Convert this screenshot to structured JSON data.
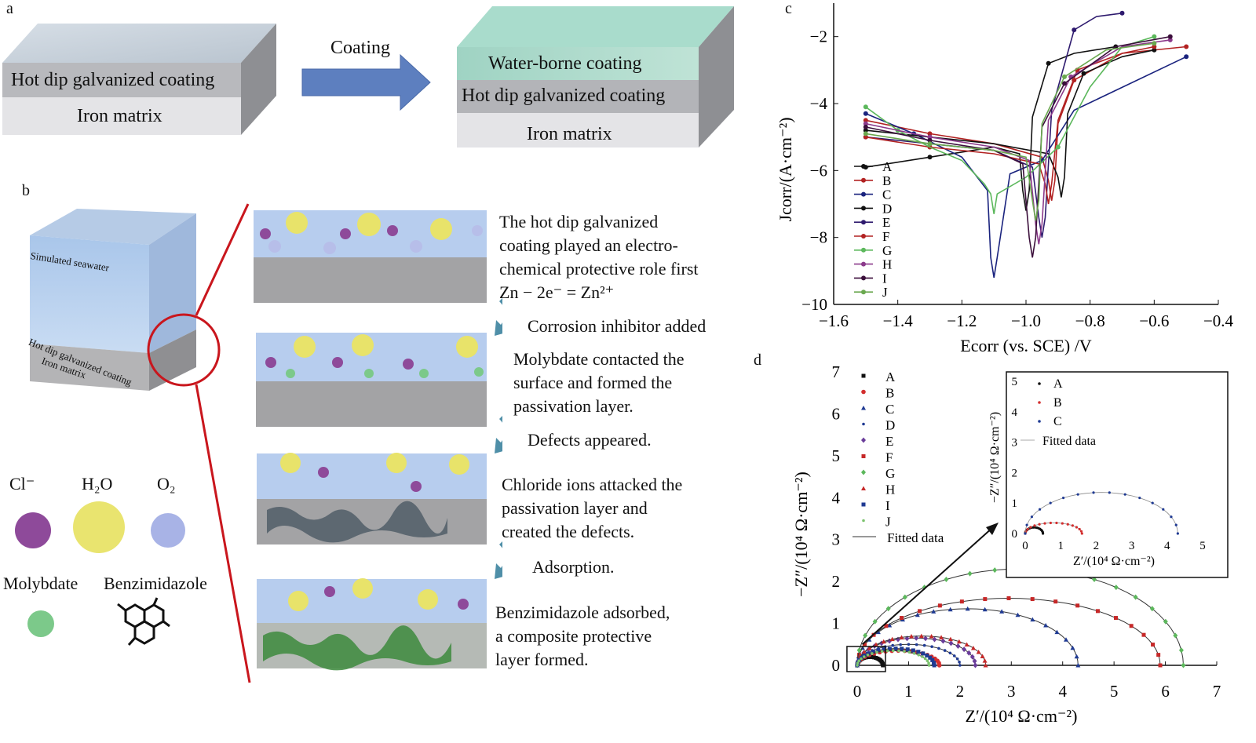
{
  "panels": {
    "a": "a",
    "b": "b",
    "c": "c",
    "d": "d"
  },
  "panel_a": {
    "left_top": "Hot dip galvanized coating",
    "left_bottom": "Iron matrix",
    "arrow_label": "Coating",
    "right_top": "Water-borne coating",
    "right_mid": "Hot dip galvanized coating",
    "right_bottom": "Iron matrix"
  },
  "panel_b": {
    "cube_top": "Simulated seawater",
    "cube_mid": "Hot dip galvanized coating",
    "cube_bottom": "Iron matrix",
    "legend": {
      "cl": "Cl⁻",
      "h2o": "H₂O",
      "o2": "O₂",
      "molybdate": "Molybdate",
      "benzimidazole": "Benzimidazole"
    },
    "steps": [
      "The hot dip galvanized\n coating played an electro-\n chemical protective role first\n Zn − 2e⁻ = Zn²⁺",
      "Molybdate contacted the\nsurface and formed the\npassivation layer.",
      "Chloride ions attacked the\npassivation layer and\ncreated the defects.",
      "Benzimidazole adsorbed,\na composite protective\nlayer formed."
    ],
    "transitions": [
      "Corrosion inhibitor added",
      "Defects appeared.",
      "Adsorption."
    ]
  },
  "chart_data": [
    {
      "type": "line",
      "panel": "c",
      "xlabel": "Ecorr (vs. SCE) /V",
      "ylabel": "Jcorr/(A·cm⁻²)",
      "xlim": [
        -1.6,
        -0.4
      ],
      "ylim": [
        -10,
        -1
      ],
      "xticks": [
        "−1.6",
        "−1.4",
        "−1.2",
        "−1.0",
        "−0.8",
        "−0.6",
        "−0.4"
      ],
      "yticks": [
        "−10",
        "−8",
        "−6",
        "−4",
        "−2"
      ],
      "legend_position": "bottom-left",
      "series": [
        {
          "name": "A",
          "color": "#111111",
          "ecorr": -1.0,
          "jmin": -7.2,
          "cathodic": [
            [
              -1.5,
              -5.9
            ],
            [
              -1.3,
              -5.6
            ],
            [
              -1.1,
              -5.3
            ],
            [
              -1.02,
              -5.5
            ]
          ],
          "anodic": [
            [
              -0.98,
              -4.4
            ],
            [
              -0.93,
              -2.8
            ],
            [
              -0.85,
              -2.5
            ],
            [
              -0.72,
              -2.3
            ]
          ]
        },
        {
          "name": "B",
          "color": "#b22222",
          "ecorr": -0.92,
          "jmin": -6.9,
          "cathodic": [
            [
              -1.5,
              -4.5
            ],
            [
              -1.3,
              -4.9
            ],
            [
              -1.1,
              -5.2
            ],
            [
              -0.95,
              -5.6
            ]
          ],
          "anodic": [
            [
              -0.9,
              -4.6
            ],
            [
              -0.85,
              -3.3
            ],
            [
              -0.7,
              -2.5
            ],
            [
              -0.5,
              -2.3
            ]
          ]
        },
        {
          "name": "C",
          "color": "#1a237e",
          "ecorr": -1.1,
          "jmin": -9.2,
          "cathodic": [
            [
              -1.5,
              -4.3
            ],
            [
              -1.35,
              -4.9
            ],
            [
              -1.2,
              -5.6
            ],
            [
              -1.12,
              -6.6
            ]
          ],
          "anodic": [
            [
              -1.05,
              -6.1
            ],
            [
              -0.95,
              -5.7
            ],
            [
              -0.85,
              -4.2
            ],
            [
              -0.5,
              -2.6
            ]
          ]
        },
        {
          "name": "D",
          "color": "#111111",
          "ecorr": -0.89,
          "jmin": -6.8,
          "cathodic": [
            [
              -1.5,
              -4.8
            ],
            [
              -1.3,
              -5.0
            ],
            [
              -1.1,
              -5.2
            ],
            [
              -0.93,
              -5.5
            ]
          ],
          "anodic": [
            [
              -0.87,
              -4.3
            ],
            [
              -0.82,
              -3.1
            ],
            [
              -0.7,
              -2.6
            ],
            [
              -0.6,
              -2.4
            ]
          ]
        },
        {
          "name": "E",
          "color": "#2e1a6e",
          "ecorr": -0.95,
          "jmin": -8.0,
          "cathodic": [
            [
              -1.5,
              -5.0
            ],
            [
              -1.3,
              -5.2
            ],
            [
              -1.1,
              -5.4
            ],
            [
              -0.98,
              -5.9
            ]
          ],
          "anodic": [
            [
              -0.92,
              -4.2
            ],
            [
              -0.85,
              -1.8
            ],
            [
              -0.78,
              -1.4
            ],
            [
              -0.7,
              -1.3
            ]
          ]
        },
        {
          "name": "F",
          "color": "#b22222",
          "ecorr": -0.93,
          "jmin": -7.0,
          "cathodic": [
            [
              -1.5,
              -5.0
            ],
            [
              -1.3,
              -5.3
            ],
            [
              -1.1,
              -5.5
            ],
            [
              -0.96,
              -5.8
            ]
          ],
          "anodic": [
            [
              -0.9,
              -4.5
            ],
            [
              -0.84,
              -3.0
            ],
            [
              -0.7,
              -2.5
            ],
            [
              -0.6,
              -2.3
            ]
          ]
        },
        {
          "name": "G",
          "color": "#5cb85c",
          "ecorr": -1.1,
          "jmin": -7.3,
          "cathodic": [
            [
              -1.5,
              -4.1
            ],
            [
              -1.4,
              -4.8
            ],
            [
              -1.3,
              -5.3
            ],
            [
              -1.2,
              -5.7
            ],
            [
              -1.13,
              -6.4
            ]
          ],
          "anodic": [
            [
              -1.0,
              -6.2
            ],
            [
              -0.9,
              -5.3
            ],
            [
              -0.8,
              -3.5
            ],
            [
              -0.7,
              -2.3
            ],
            [
              -0.6,
              -2.0
            ]
          ]
        },
        {
          "name": "H",
          "color": "#8b3a8b",
          "ecorr": -0.96,
          "jmin": -8.2,
          "cathodic": [
            [
              -1.5,
              -4.6
            ],
            [
              -1.3,
              -5.0
            ],
            [
              -1.1,
              -5.3
            ],
            [
              -0.99,
              -5.7
            ]
          ],
          "anodic": [
            [
              -0.93,
              -4.5
            ],
            [
              -0.86,
              -3.2
            ],
            [
              -0.7,
              -2.3
            ],
            [
              -0.55,
              -2.1
            ]
          ]
        },
        {
          "name": "I",
          "color": "#3b0f3b",
          "ecorr": -0.98,
          "jmin": -8.6,
          "cathodic": [
            [
              -1.5,
              -4.7
            ],
            [
              -1.3,
              -5.1
            ],
            [
              -1.1,
              -5.4
            ],
            [
              -1.01,
              -5.8
            ]
          ],
          "anodic": [
            [
              -0.95,
              -4.7
            ],
            [
              -0.88,
              -3.4
            ],
            [
              -0.72,
              -2.3
            ],
            [
              -0.55,
              -2.0
            ]
          ]
        },
        {
          "name": "J",
          "color": "#6aa84f",
          "ecorr": -0.97,
          "jmin": -7.5,
          "cathodic": [
            [
              -1.5,
              -4.9
            ],
            [
              -1.3,
              -5.2
            ],
            [
              -1.1,
              -5.4
            ],
            [
              -1.0,
              -5.6
            ]
          ],
          "anodic": [
            [
              -0.95,
              -4.6
            ],
            [
              -0.88,
              -3.2
            ],
            [
              -0.75,
              -2.4
            ],
            [
              -0.6,
              -2.2
            ]
          ]
        }
      ]
    },
    {
      "type": "scatter",
      "panel": "d",
      "xlabel": "Z′/(10⁴ Ω·cm⁻²)",
      "ylabel": "−Z″/(10⁴ Ω·cm⁻²)",
      "xlim": [
        0,
        7
      ],
      "ylim": [
        0,
        7
      ],
      "xticks": [
        "0",
        "1",
        "2",
        "3",
        "4",
        "5",
        "6",
        "7"
      ],
      "yticks": [
        "0",
        "1",
        "2",
        "3",
        "4",
        "5",
        "6",
        "7"
      ],
      "legend_position": "top-left",
      "fit_label": "Fitted data",
      "series": [
        {
          "name": "A",
          "color": "#111111",
          "marker": "square",
          "z_end": 0.5,
          "z_peak": 0.2
        },
        {
          "name": "B",
          "color": "#d32f2f",
          "marker": "circle",
          "z_end": 1.6,
          "z_peak": 0.35
        },
        {
          "name": "C",
          "color": "#1f3a93",
          "marker": "triangle",
          "z_end": 4.3,
          "z_peak": 1.35
        },
        {
          "name": "D",
          "color": "#1f3a93",
          "marker": "dot",
          "z_end": 2.0,
          "z_peak": 0.5
        },
        {
          "name": "E",
          "color": "#6a3d9a",
          "marker": "diamond",
          "z_end": 2.3,
          "z_peak": 0.65
        },
        {
          "name": "F",
          "color": "#c62828",
          "marker": "square",
          "z_end": 5.9,
          "z_peak": 1.6
        },
        {
          "name": "G",
          "color": "#5cb85c",
          "marker": "diamond",
          "z_end": 6.35,
          "z_peak": 2.3
        },
        {
          "name": "H",
          "color": "#c62828",
          "marker": "triangle",
          "z_end": 2.5,
          "z_peak": 0.7
        },
        {
          "name": "I",
          "color": "#1f3a93",
          "marker": "square",
          "z_end": 1.5,
          "z_peak": 0.4
        },
        {
          "name": "J",
          "color": "#7cc36e",
          "marker": "dot",
          "z_end": 1.4,
          "z_peak": 0.35
        }
      ]
    },
    {
      "type": "scatter",
      "panel": "d-inset",
      "xlabel": "Z′/(10⁴ Ω·cm⁻²)",
      "ylabel": "−Z″/(10⁴ Ω·cm⁻²)",
      "xlim": [
        0,
        5
      ],
      "ylim": [
        0,
        5
      ],
      "xticks": [
        "0",
        "1",
        "2",
        "3",
        "4",
        "5"
      ],
      "yticks": [
        "0",
        "1",
        "2",
        "3",
        "4",
        "5"
      ],
      "fit_label": "Fitted data",
      "series": [
        {
          "name": "A",
          "color": "#111111",
          "z_end": 0.5,
          "z_peak": 0.2
        },
        {
          "name": "B",
          "color": "#d32f2f",
          "z_end": 1.6,
          "z_peak": 0.35
        },
        {
          "name": "C",
          "color": "#1f3a93",
          "z_end": 4.3,
          "z_peak": 1.35
        }
      ]
    }
  ]
}
